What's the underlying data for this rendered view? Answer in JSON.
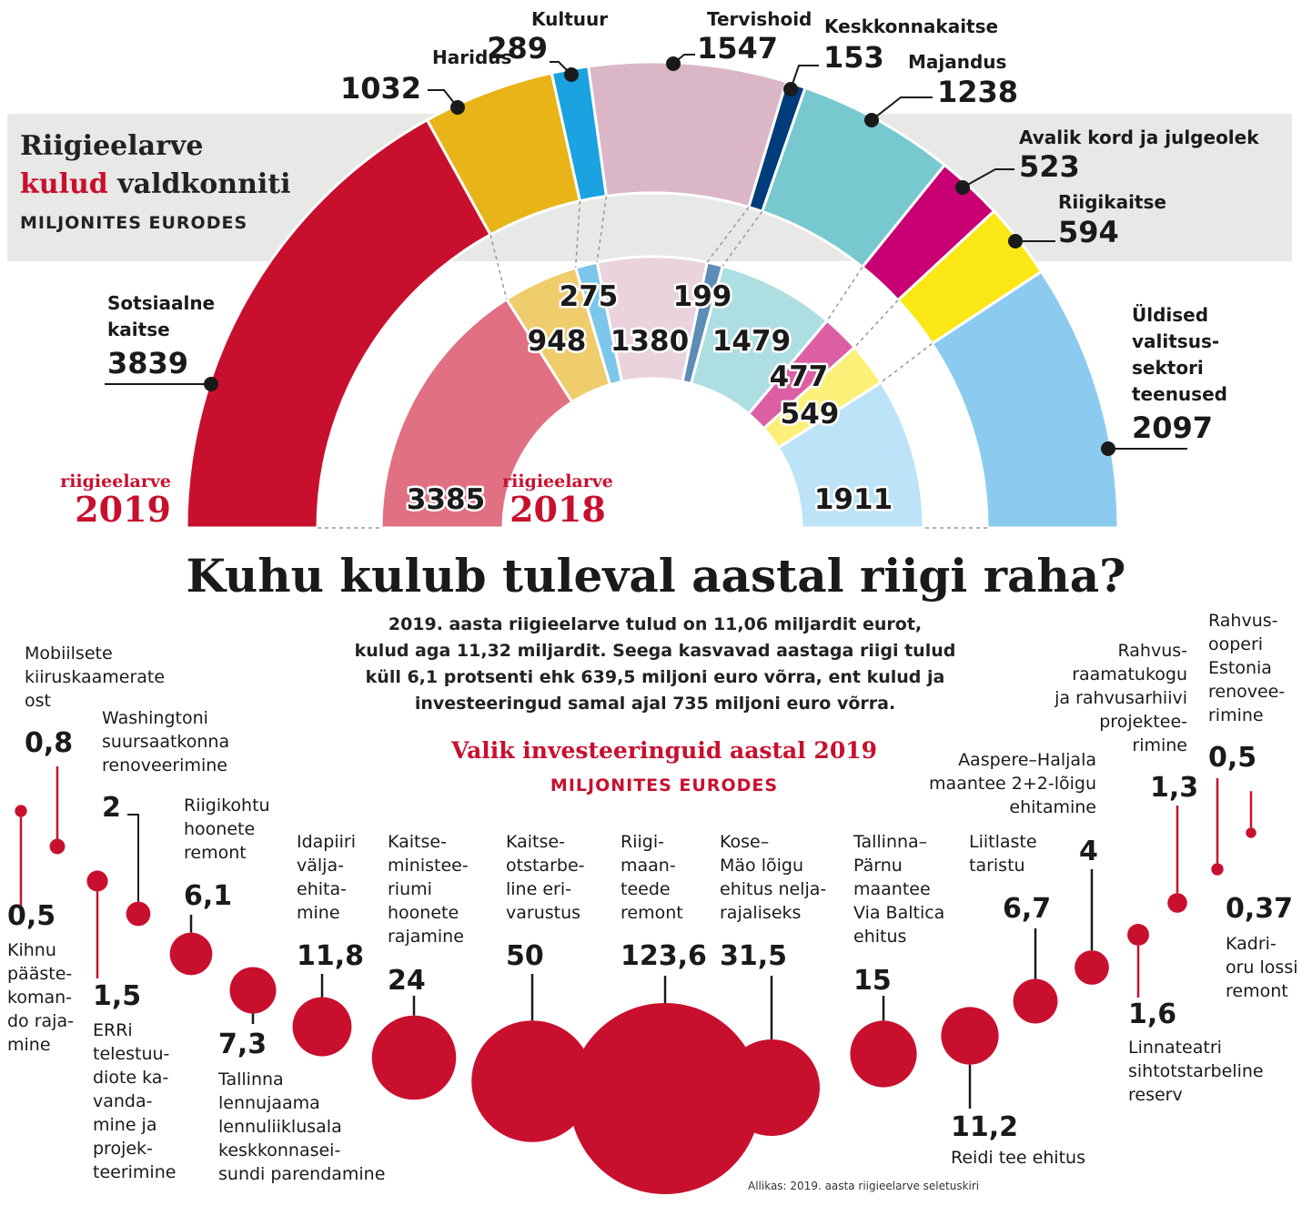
{
  "header": {
    "title_line1": "Riigieelarve",
    "title_red": "kulud",
    "title_rest": "valdkonniti",
    "unit": "MILJONITES EURODES"
  },
  "years": {
    "outer_label": "riigieelarve",
    "outer_year": "2019",
    "inner_label": "riigieelarve",
    "inner_year": "2018"
  },
  "headline": "Kuhu kulub tuleval aastal riigi raha?",
  "intro": {
    "line1": "2019. aasta riigieelarve tulud on 11,06 miljardit eurot,",
    "line2": "kulud aga 11,32 miljardit. Seega kasvavad aastaga riigi tulud",
    "line3": "küll 6,1 protsenti ehk 639,5 miljoni euro võrra, ent kulud ja",
    "line4": "investeeringud samal ajal 735 miljoni euro võrra."
  },
  "section2": {
    "title": "Valik investeeringuid aastal 2019",
    "unit": "MILJONITES EURODES"
  },
  "source": "Allikas: 2019. aasta riigieelarve seletuskiri",
  "colors": {
    "red": "#c8102e",
    "s_sotsiaalne": "#c8102e",
    "s_haridus": "#e8b418",
    "s_kultuur": "#1aa3e0",
    "s_tervishoid": "#dbb6c6",
    "s_keskkond": "#003d7a",
    "s_majandus": "#78c9cf",
    "s_avalik": "#c80073",
    "s_riigikaitse": "#fce716",
    "s_uldised": "#8ccbf0",
    "i_sotsiaalne": "#e27083",
    "i_haridus": "#efcd6d",
    "i_kultuur": "#7cc6ec",
    "i_tervishoid": "#ead3dd",
    "i_keskkond": "#5d8cb6",
    "i_majandus": "#addfe2",
    "i_avalik": "#dc5fa4",
    "i_riigikaitse": "#fdf079",
    "i_uldised": "#bce3f8",
    "band": "#e8e8e6"
  },
  "chart_data": [
    {
      "type": "pie",
      "subtype": "nested-semicircle",
      "title": "Riigieelarve kulud valdkonniti",
      "unit": "MILJONITES EURODES",
      "categories": [
        "Sotsiaalne kaitse",
        "Haridus",
        "Kultuur",
        "Tervishoid",
        "Keskkonnakaitse",
        "Majandus",
        "Avalik kord ja julgeolek",
        "Riigikaitse",
        "Üldised valitsussektori teenused"
      ],
      "series": [
        {
          "name": "riigieelarve 2019",
          "values": [
            3839,
            1032,
            289,
            1547,
            153,
            1238,
            523,
            594,
            2097
          ],
          "labels": [
            "3839",
            "1032",
            "289",
            "1547",
            "153",
            "1238",
            "523",
            "594",
            "2097"
          ]
        },
        {
          "name": "riigieelarve 2018",
          "values": [
            3385,
            948,
            275,
            1380,
            199,
            1479,
            477,
            549,
            1911
          ],
          "labels": [
            "3385",
            "948",
            "275",
            "1380",
            "199",
            "1479",
            "477",
            "549",
            "1911"
          ]
        }
      ],
      "outer_names": [
        [
          "Sotsiaalne",
          "kaitse"
        ],
        [
          "Haridus"
        ],
        [
          "Kultuur"
        ],
        [
          "Tervishoid"
        ],
        [
          "Keskkonnakaitse"
        ],
        [
          "Majandus"
        ],
        [
          "Avalik kord ja julgeolek"
        ],
        [
          "Riigikaitse"
        ],
        [
          "Üldised",
          "valitsus-",
          "sektori",
          "teenused"
        ]
      ]
    },
    {
      "type": "scatter",
      "subtype": "bubble",
      "title": "Valik investeeringuid aastal 2019",
      "unit": "MILJONITES EURODES",
      "items": [
        {
          "value": 0.5,
          "label": "0,5",
          "name": [
            "Kihnu",
            "pääste-",
            "koman-",
            "do raja-",
            "mine"
          ]
        },
        {
          "value": 0.8,
          "label": "0,8",
          "name": [
            "Mobiilsete",
            "kiiruskaamerate",
            "ost"
          ]
        },
        {
          "value": 1.5,
          "label": "1,5",
          "name": [
            "ERRi",
            "telestuu-",
            "diote ka-",
            "vanda-",
            "mine ja",
            "projek-",
            "teerimine"
          ]
        },
        {
          "value": 2,
          "label": "2",
          "name": [
            "Washingtoni",
            "suursaatkonna",
            "renoveerimine"
          ]
        },
        {
          "value": 6.1,
          "label": "6,1",
          "name": [
            "Riigikohtu",
            "hoonete",
            "remont"
          ]
        },
        {
          "value": 7.3,
          "label": "7,3",
          "name": [
            "Tallinna",
            "lennujaama",
            "lennuliiklusala",
            "keskkonnasei-",
            "sundi parendamine"
          ]
        },
        {
          "value": 11.8,
          "label": "11,8",
          "name": [
            "Idapiiri",
            "välja-",
            "ehita-",
            "mine"
          ]
        },
        {
          "value": 24,
          "label": "24",
          "name": [
            "Kaitse-",
            "ministee-",
            "riumi",
            "hoonete",
            "rajamine"
          ]
        },
        {
          "value": 50,
          "label": "50",
          "name": [
            "Kaitse-",
            "otstarbe-",
            "line eri-",
            "varustus"
          ]
        },
        {
          "value": 123.6,
          "label": "123,6",
          "name": [
            "Riigi-",
            "maan-",
            "teede",
            "remont"
          ]
        },
        {
          "value": 31.5,
          "label": "31,5",
          "name": [
            "Kose–",
            "Mäo lõigu",
            "ehitus nelja-",
            "rajaliseks"
          ]
        },
        {
          "value": 15,
          "label": "15",
          "name": [
            "Tallinna–",
            "Pärnu",
            "maantee",
            "Via Baltica",
            "ehitus"
          ]
        },
        {
          "value": 11.2,
          "label": "11,2",
          "name": [
            "Reidi tee ehitus"
          ]
        },
        {
          "value": 6.7,
          "label": "6,7",
          "name": [
            "Liitlaste",
            "taristu"
          ]
        },
        {
          "value": 4,
          "label": "4",
          "name": [
            "Aaspere–Haljala",
            "maantee 2+2-lõigu",
            "ehitamine"
          ]
        },
        {
          "value": 1.6,
          "label": "1,6",
          "name": [
            "Linnateatri",
            "sihtotstarbeline",
            "reserv"
          ]
        },
        {
          "value": 1.3,
          "label": "1,3",
          "name": [
            "Rahvus-",
            "raamatukogu",
            "ja rahvusarhiivi",
            "projektee-",
            "rimine"
          ]
        },
        {
          "value": 0.5,
          "label": "0,5",
          "name": [
            "Rahvus-",
            "ooperi",
            "Estonia",
            "renovee-",
            "rimine"
          ]
        },
        {
          "value": 0.37,
          "label": "0,37",
          "name": [
            "Kadri-",
            "oru lossi",
            "remont"
          ]
        }
      ]
    }
  ]
}
